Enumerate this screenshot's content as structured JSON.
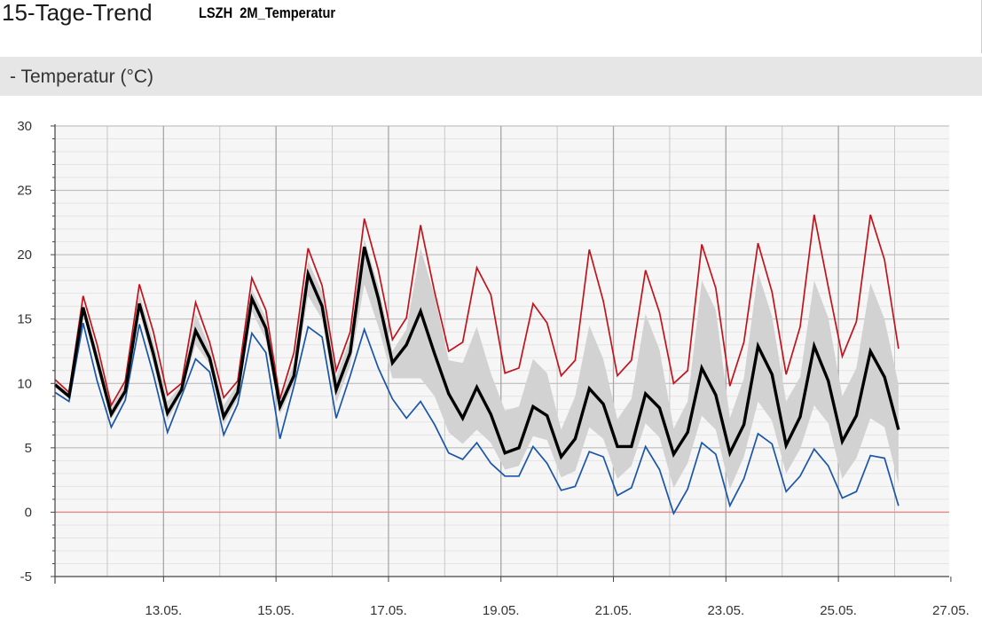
{
  "header": {
    "title": "15-Tage-Trend",
    "station": "LSZH  2M_Temperatur"
  },
  "section": {
    "label": "- Temperatur (°C)"
  },
  "colors": {
    "max": "#c0141c",
    "min": "#1a55a8",
    "median": "#000000",
    "band": "#d2d2d2",
    "zero_line": "#e08a8a",
    "grid": "#b4b4b4",
    "plot_bg": "#f6f6f6"
  },
  "chart_data": {
    "type": "line",
    "ylabel": "Temperatur (°C)",
    "ylim": [
      -5,
      30
    ],
    "yticks": [
      "30",
      "25",
      "20",
      "15",
      "10",
      "5",
      "0",
      "-5"
    ],
    "x_unit": "days since 12.05. 00:00",
    "xlim": [
      -0.93,
      14.97
    ],
    "xtick_positions": [
      1,
      3,
      5,
      7,
      9,
      11,
      13,
      15
    ],
    "xtick_labels": [
      "13.05.",
      "15.05.",
      "17.05.",
      "19.05.",
      "21.05.",
      "23.05.",
      "25.05.",
      "27.05."
    ],
    "x_step_days": 0.25,
    "x_start": -0.93,
    "grid": true,
    "series": [
      {
        "name": "Maximum",
        "values": [
          10.3,
          9.3,
          16.8,
          13.0,
          8.3,
          10.2,
          17.7,
          14.0,
          9.1,
          10.0,
          16.3,
          13.2,
          8.9,
          10.2,
          18.2,
          15.7,
          8.8,
          12.4,
          20.5,
          17.6,
          11.0,
          14.0,
          22.8,
          18.8,
          13.4,
          15.1,
          22.3,
          17.1,
          12.5,
          13.2,
          19.0,
          16.9,
          10.8,
          11.2,
          16.2,
          14.7,
          10.6,
          11.8,
          20.4,
          16.4,
          10.6,
          11.8,
          18.8,
          15.5,
          10.0,
          11.0,
          20.8,
          17.4,
          9.8,
          13.2,
          20.9,
          17.1,
          10.7,
          14.4,
          23.1,
          17.5,
          12.1,
          14.8,
          23.1,
          19.6,
          12.7
        ]
      },
      {
        "name": "Minimum",
        "values": [
          9.3,
          8.6,
          14.7,
          10.2,
          6.6,
          8.7,
          14.6,
          10.7,
          6.2,
          9.0,
          11.9,
          10.9,
          6.0,
          8.4,
          13.9,
          12.4,
          5.7,
          9.8,
          14.4,
          13.6,
          7.3,
          10.6,
          14.2,
          11.2,
          8.8,
          7.3,
          8.6,
          6.8,
          4.6,
          4.1,
          5.4,
          3.8,
          2.8,
          2.8,
          5.1,
          3.8,
          1.7,
          2.0,
          4.7,
          4.3,
          1.3,
          1.9,
          5.1,
          3.3,
          -0.1,
          1.8,
          5.4,
          4.5,
          0.5,
          2.6,
          6.1,
          5.3,
          1.6,
          2.8,
          4.9,
          3.6,
          1.1,
          1.6,
          4.4,
          4.2,
          0.5
        ]
      },
      {
        "name": "Median",
        "values": [
          9.9,
          9.0,
          15.9,
          11.8,
          7.6,
          9.4,
          16.2,
          12.3,
          7.7,
          9.5,
          14.1,
          12.0,
          7.4,
          9.3,
          16.6,
          14.3,
          8.2,
          10.6,
          18.5,
          16.0,
          9.5,
          12.4,
          20.6,
          16.6,
          11.6,
          13.0,
          15.6,
          12.3,
          9.2,
          7.3,
          9.7,
          7.6,
          4.6,
          5.0,
          8.2,
          7.5,
          4.3,
          5.7,
          9.6,
          8.4,
          5.1,
          5.1,
          9.2,
          8.1,
          4.5,
          6.2,
          11.2,
          9.1,
          4.6,
          6.8,
          12.9,
          10.7,
          5.2,
          7.4,
          12.9,
          10.2,
          5.5,
          7.5,
          12.5,
          10.5,
          6.4
        ]
      },
      {
        "name": "Quantil-Band oben",
        "values": [
          10.1,
          9.2,
          16.3,
          12.5,
          8.1,
          10.0,
          17.0,
          13.3,
          8.6,
          9.9,
          15.4,
          12.8,
          8.3,
          10.0,
          17.3,
          15.1,
          8.7,
          11.6,
          19.5,
          17.1,
          10.5,
          13.5,
          21.2,
          17.6,
          12.5,
          14.2,
          20.5,
          16.8,
          11.8,
          11.6,
          14.4,
          10.8,
          7.9,
          8.2,
          11.9,
          10.8,
          6.4,
          9.0,
          14.5,
          11.9,
          7.2,
          8.8,
          15.4,
          12.6,
          6.5,
          8.6,
          18.0,
          15.7,
          7.3,
          10.4,
          18.6,
          15.2,
          8.6,
          10.5,
          18.0,
          15.1,
          9.0,
          11.2,
          17.8,
          15.0,
          9.9
        ]
      },
      {
        "name": "Quantil-Band unten",
        "values": [
          9.7,
          8.8,
          15.6,
          11.2,
          7.2,
          9.0,
          15.6,
          11.5,
          7.1,
          9.2,
          13.0,
          11.5,
          6.8,
          8.8,
          15.6,
          13.4,
          7.6,
          10.0,
          16.8,
          15.0,
          8.5,
          11.4,
          17.7,
          14.4,
          10.4,
          10.4,
          10.4,
          9.0,
          6.2,
          5.3,
          6.4,
          5.4,
          3.3,
          3.6,
          5.9,
          5.6,
          2.7,
          3.2,
          6.6,
          5.7,
          2.6,
          3.6,
          6.9,
          5.8,
          1.9,
          3.8,
          7.5,
          6.4,
          1.8,
          4.3,
          8.6,
          7.1,
          3.0,
          4.9,
          8.3,
          6.9,
          2.6,
          4.2,
          7.3,
          6.6,
          2.2
        ]
      }
    ]
  }
}
